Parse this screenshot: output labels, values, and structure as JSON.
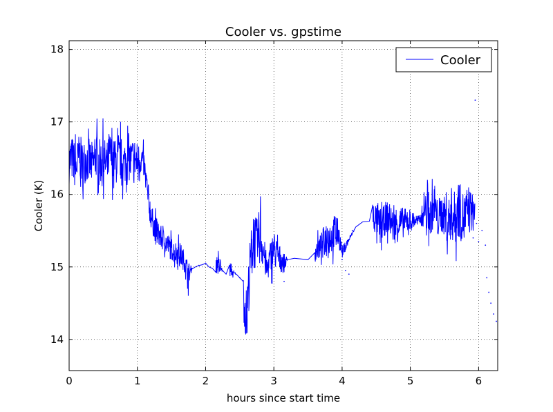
{
  "chart_data": {
    "type": "line",
    "title": "Cooler vs. gpstime",
    "xlabel": "hours since start time",
    "ylabel": "Cooler (K)",
    "xlim": [
      0,
      6.28
    ],
    "ylim": [
      13.57,
      18.12
    ],
    "grid": true,
    "legend_position": "top-right",
    "xticks": [
      0,
      1,
      2,
      3,
      4,
      5,
      6
    ],
    "yticks": [
      14,
      15,
      16,
      17,
      18
    ],
    "series": [
      {
        "name": "Cooler",
        "color": "#0000ff",
        "x": [
          0.0,
          0.05,
          0.1,
          0.15,
          0.2,
          0.25,
          0.3,
          0.35,
          0.4,
          0.45,
          0.5,
          0.55,
          0.6,
          0.65,
          0.7,
          0.75,
          0.8,
          0.85,
          0.9,
          0.95,
          1.0,
          1.05,
          1.1,
          1.15,
          1.2,
          1.25,
          1.3,
          1.35,
          1.4,
          1.45,
          1.5,
          1.55,
          1.6,
          1.65,
          1.7,
          1.75,
          1.8,
          1.85,
          1.9,
          1.95,
          2.0,
          2.05,
          2.1,
          2.15,
          2.2,
          2.25,
          2.3,
          2.35,
          2.4,
          2.45,
          2.5,
          2.55,
          2.6,
          2.65,
          2.7,
          2.75,
          2.8,
          2.85,
          2.9,
          2.95,
          3.0,
          3.05,
          3.1,
          3.15,
          3.2,
          3.3,
          3.4,
          3.5,
          3.6,
          3.7,
          3.75,
          3.8,
          3.85,
          3.9,
          3.95,
          4.0,
          4.2,
          4.3,
          4.4,
          4.45,
          4.5,
          4.55,
          4.6,
          4.65,
          4.7,
          4.75,
          4.8,
          5.15,
          5.2,
          5.25,
          5.3,
          5.35,
          5.4,
          5.45,
          5.5,
          5.55,
          5.6,
          5.65,
          5.7,
          5.75,
          5.8,
          5.85,
          5.9
        ],
        "values": [
          16.45,
          16.5,
          16.35,
          16.55,
          16.4,
          16.5,
          16.45,
          16.4,
          16.55,
          16.45,
          16.5,
          16.4,
          16.55,
          16.45,
          16.45,
          16.5,
          16.4,
          16.55,
          16.45,
          16.5,
          16.45,
          16.5,
          16.4,
          16.0,
          15.7,
          15.55,
          15.45,
          15.4,
          15.35,
          15.3,
          15.25,
          15.2,
          15.2,
          15.15,
          15.05,
          14.9,
          14.97,
          15.0,
          15.02,
          15.03,
          15.05,
          15.0,
          14.98,
          15.05,
          15.0,
          14.95,
          14.9,
          14.95,
          14.92,
          14.9,
          14.85,
          14.6,
          14.3,
          15.0,
          15.4,
          15.3,
          15.45,
          15.2,
          14.95,
          15.15,
          15.25,
          15.15,
          15.1,
          15.05,
          15.1,
          15.12,
          15.11,
          15.1,
          15.2,
          15.3,
          15.4,
          15.45,
          15.4,
          15.5,
          15.45,
          15.2,
          15.55,
          15.62,
          15.63,
          15.7,
          15.65,
          15.55,
          15.6,
          15.7,
          15.65,
          15.55,
          15.6,
          15.65,
          15.8,
          15.75,
          15.7,
          15.85,
          15.65,
          15.75,
          15.7,
          15.6,
          15.75,
          15.65,
          15.85,
          15.7,
          15.65,
          15.8,
          15.75
        ],
        "spread": [
          0.35,
          0.35,
          0.35,
          0.35,
          0.35,
          0.35,
          0.35,
          0.35,
          0.35,
          0.35,
          0.35,
          0.35,
          0.35,
          0.35,
          0.35,
          0.35,
          0.35,
          0.35,
          0.35,
          0.35,
          0.3,
          0.25,
          0.2,
          0.25,
          0.2,
          0.2,
          0.2,
          0.18,
          0.18,
          0.18,
          0.18,
          0.18,
          0.18,
          0.18,
          0.15,
          0.2,
          0.0,
          0.0,
          0.0,
          0.0,
          0.0,
          0.0,
          0.0,
          0.15,
          0.15,
          0.0,
          0.0,
          0.1,
          0.05,
          0.0,
          0.0,
          0.3,
          0.45,
          0.4,
          0.5,
          0.4,
          0.45,
          0.3,
          0.2,
          0.25,
          0.3,
          0.25,
          0.2,
          0.15,
          0.0,
          0.0,
          0.0,
          0.0,
          0.15,
          0.2,
          0.25,
          0.25,
          0.25,
          0.3,
          0.2,
          0.1,
          0.0,
          0.0,
          0.0,
          0.25,
          0.25,
          0.3,
          0.25,
          0.25,
          0.25,
          0.25,
          0.3,
          0.05,
          0.3,
          0.3,
          0.3,
          0.3,
          0.3,
          0.3,
          0.3,
          0.35,
          0.4,
          0.45,
          0.5,
          0.4,
          0.45,
          0.4,
          0.3
        ],
        "scatter_x": [
          1.8,
          1.9,
          2.0,
          2.5,
          3.15,
          4.0,
          4.05,
          4.1,
          4.15,
          5.92,
          5.95,
          5.97,
          6.0,
          6.05,
          6.1,
          6.12,
          6.15,
          6.18,
          6.22,
          6.26
        ],
        "scatter_values": [
          14.98,
          15.02,
          15.05,
          14.85,
          14.8,
          15.1,
          14.95,
          14.9,
          15.5,
          15.4,
          17.3,
          15.6,
          15.35,
          15.5,
          15.3,
          14.85,
          14.65,
          14.5,
          14.35,
          14.25
        ]
      }
    ]
  }
}
